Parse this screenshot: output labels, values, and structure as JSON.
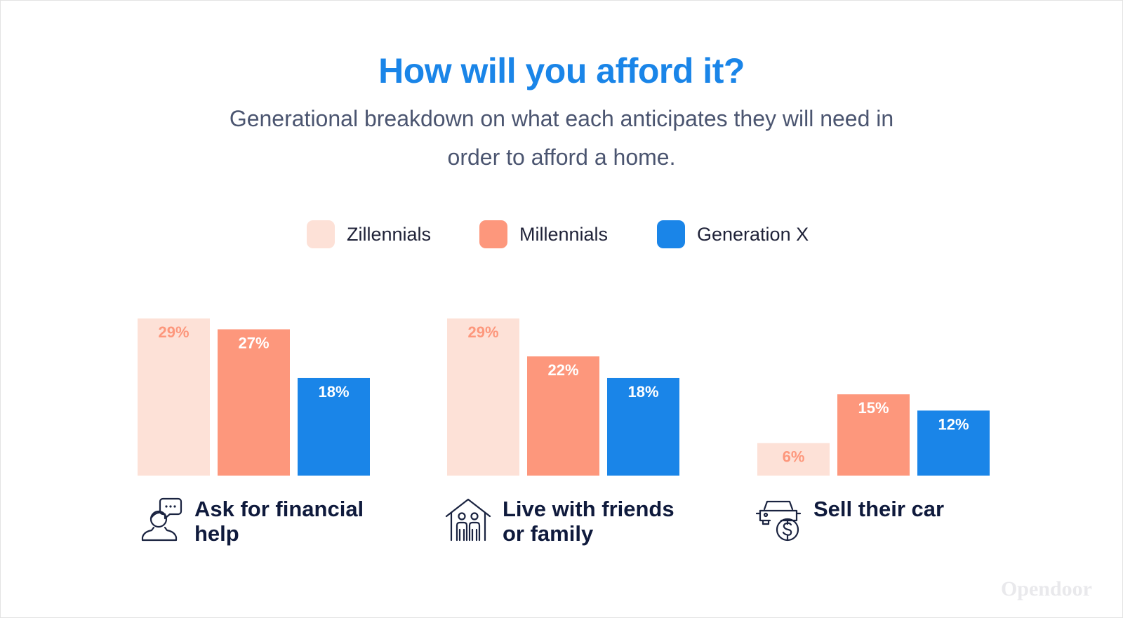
{
  "title": "How will you afford it?",
  "subtitle": "Generational breakdown on what each anticipates they will need in order to afford a home.",
  "brand": "Opendoor",
  "colors": {
    "zillennials": "#fde1d7",
    "millennials": "#fd977c",
    "genx": "#1a85e8",
    "zillennials_label": "#fd977c",
    "bar_label_light": "#ffffff"
  },
  "legend": [
    {
      "name": "Zillennials",
      "color": "#fde1d7"
    },
    {
      "name": "Millennials",
      "color": "#fd977c"
    },
    {
      "name": "Generation X",
      "color": "#1a85e8"
    }
  ],
  "chart_data": {
    "type": "bar",
    "title": "How will you afford it?",
    "categories": [
      "Ask for financial help",
      "Live with friends or family",
      "Sell their car"
    ],
    "category_icons": [
      "person-speech-bubble-icon",
      "house-family-icon",
      "car-dollar-icon"
    ],
    "series": [
      {
        "name": "Zillennials",
        "values": [
          29,
          29,
          6
        ]
      },
      {
        "name": "Millennials",
        "values": [
          27,
          22,
          15
        ]
      },
      {
        "name": "Generation X",
        "values": [
          18,
          18,
          12
        ]
      }
    ],
    "value_labels": [
      [
        "29%",
        "29%",
        "6%"
      ],
      [
        "27%",
        "22%",
        "15%"
      ],
      [
        "18%",
        "18%",
        "12%"
      ]
    ],
    "unit": "%",
    "ylim": [
      0,
      29
    ],
    "grid": false,
    "legend_position": "top-center",
    "xlabel": "",
    "ylabel": ""
  }
}
